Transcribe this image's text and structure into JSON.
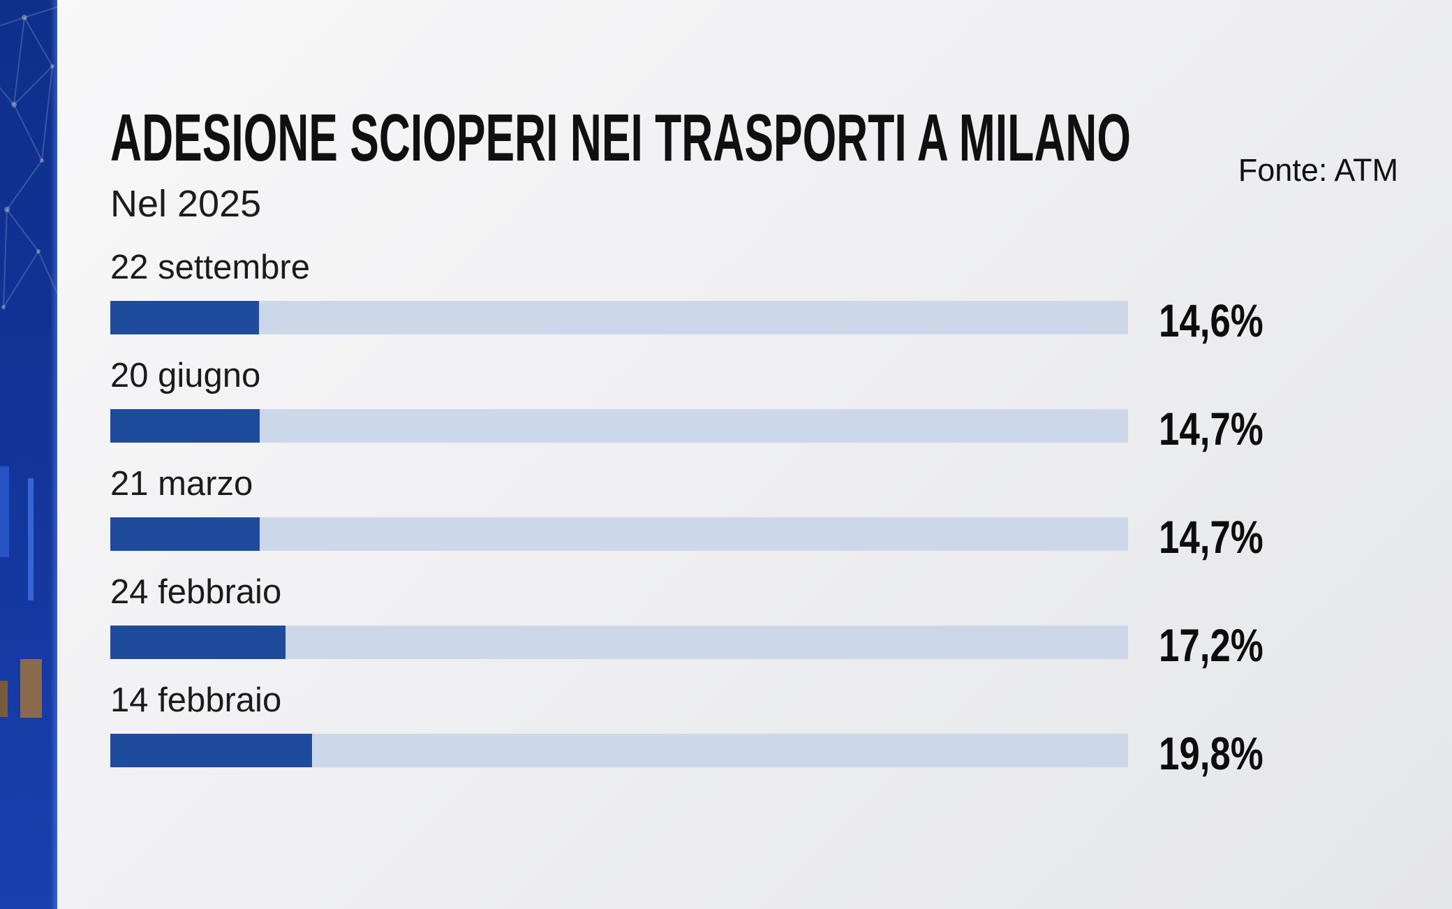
{
  "header": {
    "title": "ADESIONE SCIOPERI NEI TRASPORTI A MILANO",
    "subtitle": "Nel 2025",
    "source": "Fonte: ATM"
  },
  "chart_data": {
    "type": "bar",
    "orientation": "horizontal",
    "title": "ADESIONE SCIOPERI NEI TRASPORTI A MILANO",
    "subtitle": "Nel 2025",
    "source": "Fonte: ATM",
    "categories": [
      "22 settembre",
      "20 giugno",
      "21 marzo",
      "24 febbraio",
      "14 febbraio"
    ],
    "values": [
      14.6,
      14.7,
      14.7,
      17.2,
      19.8
    ],
    "value_labels": [
      "14,6%",
      "14,7%",
      "14,7%",
      "17,2%",
      "19,8%"
    ],
    "xlim": [
      0,
      100
    ],
    "grid": false,
    "legend": "none",
    "colors": {
      "fill": "#1e4b9b",
      "track": "#cdd7ea",
      "sidebar": "#12339a",
      "background": "#f1f1f3"
    }
  }
}
